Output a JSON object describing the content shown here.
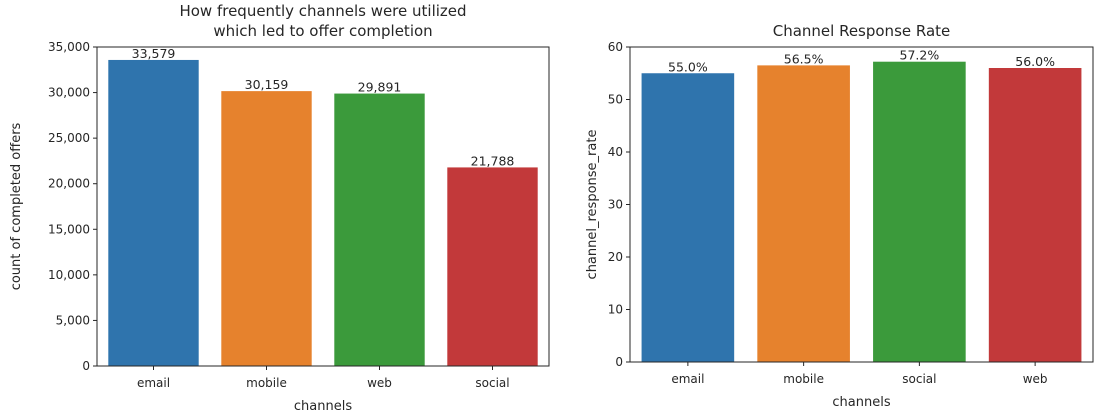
{
  "chart_data": [
    {
      "type": "bar",
      "title_lines": [
        "How frequently channels were utilized",
        "which led to offer completion"
      ],
      "xlabel": "channels",
      "ylabel": "count of completed offers",
      "categories": [
        "email",
        "mobile",
        "web",
        "social"
      ],
      "values": [
        33579,
        30159,
        29891,
        21788
      ],
      "value_labels": [
        "33,579",
        "30,159",
        "29,891",
        "21,788"
      ],
      "colors": [
        "#2f74ad",
        "#e6822d",
        "#3b9a3b",
        "#c2393a"
      ],
      "ylim": [
        0,
        35000
      ],
      "yticks": [
        0,
        5000,
        10000,
        15000,
        20000,
        25000,
        30000,
        35000
      ],
      "ytick_labels": [
        "0",
        "5,000",
        "10,000",
        "15,000",
        "20,000",
        "25,000",
        "30,000",
        "35,000"
      ],
      "grid": false
    },
    {
      "type": "bar",
      "title_lines": [
        "Channel Response Rate"
      ],
      "xlabel": "channels",
      "ylabel": "channel_response_rate",
      "categories": [
        "email",
        "mobile",
        "social",
        "web"
      ],
      "values": [
        55.0,
        56.5,
        57.2,
        56.0
      ],
      "value_labels": [
        "55.0%",
        "56.5%",
        "57.2%",
        "56.0%"
      ],
      "colors": [
        "#2f74ad",
        "#e6822d",
        "#3b9a3b",
        "#c2393a"
      ],
      "ylim": [
        0,
        60
      ],
      "yticks": [
        0,
        10,
        20,
        30,
        40,
        50,
        60
      ],
      "ytick_labels": [
        "0",
        "10",
        "20",
        "30",
        "40",
        "50",
        "60"
      ],
      "grid": false
    }
  ]
}
